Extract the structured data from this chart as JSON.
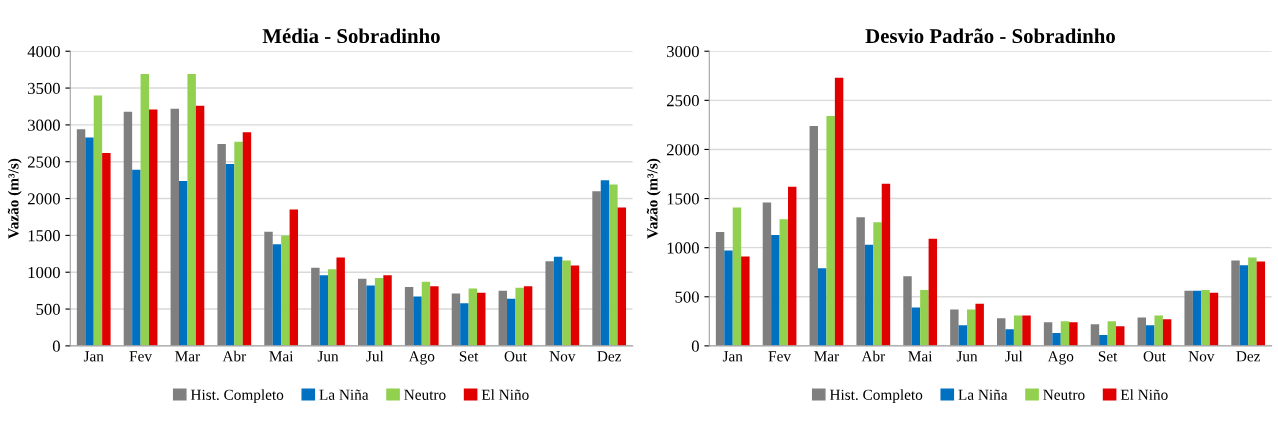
{
  "chart_data": [
    {
      "type": "bar",
      "title": "Média - Sobradinho",
      "ylabel": "Vazão (m³/s)",
      "categories": [
        "Jan",
        "Fev",
        "Mar",
        "Abr",
        "Mai",
        "Jun",
        "Jul",
        "Ago",
        "Set",
        "Out",
        "Nov",
        "Dez"
      ],
      "ylim": [
        0,
        4000
      ],
      "yticks": [
        0,
        500,
        1000,
        1500,
        2000,
        2500,
        3000,
        3500,
        4000
      ],
      "grid": "y",
      "legend": "bottom",
      "series": [
        {
          "name": "Hist. Completo",
          "color": "#7f7f7f",
          "values": [
            2940,
            3180,
            3220,
            2740,
            1550,
            1060,
            910,
            800,
            710,
            750,
            1150,
            2100
          ]
        },
        {
          "name": "La Niña",
          "color": "#0070c0",
          "values": [
            2830,
            2390,
            2240,
            2470,
            1380,
            960,
            820,
            670,
            580,
            640,
            1210,
            2250
          ]
        },
        {
          "name": "Neutro",
          "color": "#92d050",
          "values": [
            3400,
            3690,
            3690,
            2770,
            1500,
            1040,
            920,
            870,
            780,
            790,
            1160,
            2190
          ]
        },
        {
          "name": "El Niño",
          "color": "#e00000",
          "values": [
            2620,
            3210,
            3260,
            2900,
            1850,
            1200,
            960,
            810,
            720,
            810,
            1090,
            1880
          ]
        }
      ]
    },
    {
      "type": "bar",
      "title": "Desvio Padrão - Sobradinho",
      "ylabel": "Vazão (m³/s)",
      "categories": [
        "Jan",
        "Fev",
        "Mar",
        "Abr",
        "Mai",
        "Jun",
        "Jul",
        "Ago",
        "Set",
        "Out",
        "Nov",
        "Dez"
      ],
      "ylim": [
        0,
        3000
      ],
      "yticks": [
        0,
        500,
        1000,
        1500,
        2000,
        2500,
        3000
      ],
      "grid": "y",
      "legend": "bottom",
      "series": [
        {
          "name": "Hist. Completo",
          "color": "#7f7f7f",
          "values": [
            1160,
            1460,
            2240,
            1310,
            710,
            370,
            280,
            240,
            220,
            290,
            560,
            870
          ]
        },
        {
          "name": "La Niña",
          "color": "#0070c0",
          "values": [
            970,
            1130,
            790,
            1030,
            390,
            210,
            170,
            130,
            110,
            210,
            560,
            820
          ]
        },
        {
          "name": "Neutro",
          "color": "#92d050",
          "values": [
            1410,
            1290,
            2340,
            1260,
            570,
            370,
            310,
            250,
            250,
            310,
            570,
            900
          ]
        },
        {
          "name": "El Niño",
          "color": "#e00000",
          "values": [
            910,
            1620,
            2730,
            1650,
            1090,
            430,
            310,
            240,
            200,
            270,
            540,
            860
          ]
        }
      ]
    }
  ]
}
